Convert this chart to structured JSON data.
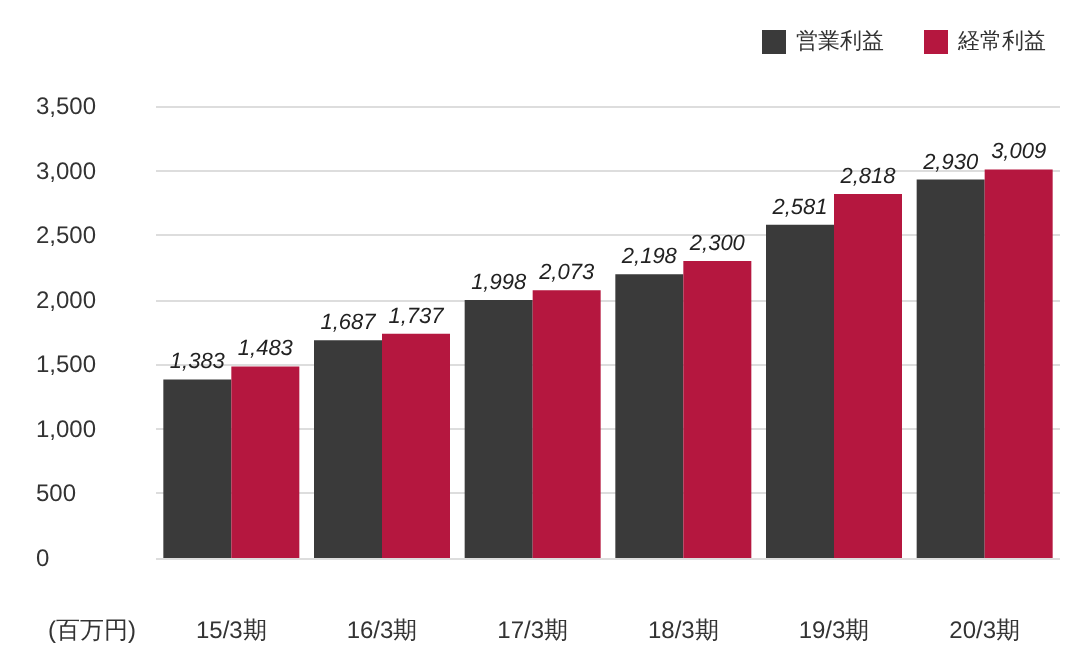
{
  "chart_data": {
    "type": "bar",
    "ylabel": "(百万円)",
    "categories": [
      "15/3期",
      "16/3期",
      "17/3期",
      "18/3期",
      "19/3期",
      "20/3期"
    ],
    "series": [
      {
        "name": "営業利益",
        "color": "#3a3a3a",
        "values": [
          1383,
          1687,
          1998,
          2198,
          2581,
          2930
        ],
        "value_labels": [
          "1,383",
          "1,687",
          "1,998",
          "2,198",
          "2,581",
          "2,930"
        ]
      },
      {
        "name": "経常利益",
        "color": "#b5173f",
        "values": [
          1483,
          1737,
          2073,
          2300,
          2818,
          3009
        ],
        "value_labels": [
          "1,483",
          "1,737",
          "2,073",
          "2,300",
          "2,818",
          "3,009"
        ]
      }
    ],
    "ylim": [
      0,
      3500
    ],
    "yticks": [
      0,
      500,
      {
        "value": 1000,
        "label": "1,000"
      },
      {
        "value": 1500,
        "label": "1,500"
      },
      {
        "value": 2000,
        "label": "2,000"
      },
      {
        "value": 2500,
        "label": "2,500"
      },
      {
        "value": 3000,
        "label": "3,000"
      },
      {
        "value": 3500,
        "label": "3,500"
      }
    ],
    "grid": "y",
    "legend": "top right"
  }
}
